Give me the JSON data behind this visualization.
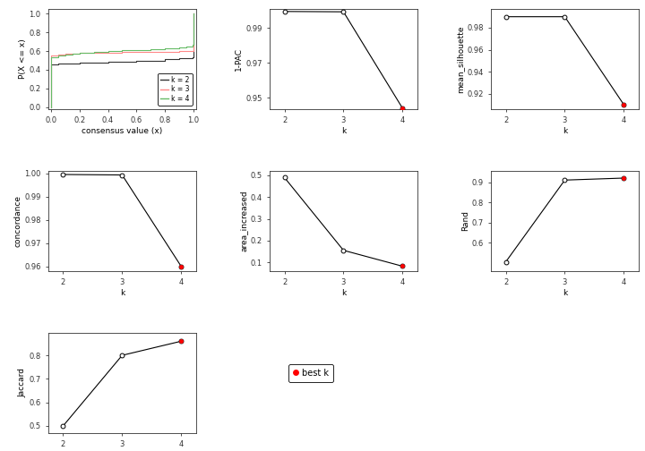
{
  "ecdf": {
    "k2": {
      "x": [
        0.0,
        0.001,
        0.05,
        0.1,
        0.15,
        0.2,
        0.3,
        0.4,
        0.5,
        0.6,
        0.7,
        0.8,
        0.9,
        0.95,
        0.999,
        1.0
      ],
      "y": [
        0.0,
        0.46,
        0.47,
        0.47,
        0.47,
        0.48,
        0.48,
        0.49,
        0.49,
        0.5,
        0.5,
        0.51,
        0.52,
        0.52,
        0.53,
        1.0
      ],
      "color": "#333333"
    },
    "k3": {
      "x": [
        0.0,
        0.001,
        0.05,
        0.1,
        0.15,
        0.2,
        0.3,
        0.4,
        0.5,
        0.6,
        0.7,
        0.8,
        0.9,
        0.95,
        0.999,
        1.0
      ],
      "y": [
        0.0,
        0.55,
        0.56,
        0.57,
        0.57,
        0.58,
        0.58,
        0.58,
        0.59,
        0.59,
        0.59,
        0.59,
        0.6,
        0.6,
        0.6,
        1.0
      ],
      "color": "#FF8888"
    },
    "k4": {
      "x": [
        0.0,
        0.001,
        0.05,
        0.1,
        0.15,
        0.2,
        0.3,
        0.4,
        0.5,
        0.6,
        0.7,
        0.8,
        0.9,
        0.95,
        0.999,
        1.0
      ],
      "y": [
        0.0,
        0.53,
        0.55,
        0.56,
        0.57,
        0.58,
        0.59,
        0.6,
        0.61,
        0.61,
        0.62,
        0.63,
        0.64,
        0.65,
        0.67,
        1.0
      ],
      "color": "#66BB66"
    }
  },
  "k_values": [
    2,
    3,
    4
  ],
  "pac": {
    "values": [
      0.9996,
      0.9994,
      0.944
    ],
    "best_k": 4,
    "ylim": [
      0.9435,
      1.001
    ],
    "yticks": [
      0.95,
      0.97,
      0.99
    ],
    "ylabel": "1-PAC"
  },
  "silhouette": {
    "values": [
      0.99,
      0.99,
      0.91
    ],
    "best_k": 4,
    "ylim": [
      0.906,
      0.997
    ],
    "yticks": [
      0.92,
      0.94,
      0.96,
      0.98
    ],
    "ylabel": "mean_silhouette"
  },
  "concordance": {
    "values": [
      0.9995,
      0.9993,
      0.96
    ],
    "best_k": 4,
    "ylim": [
      0.958,
      1.001
    ],
    "yticks": [
      0.96,
      0.97,
      0.98,
      0.99,
      1.0
    ],
    "ylabel": "concordance"
  },
  "area_increased": {
    "values": [
      0.49,
      0.155,
      0.082
    ],
    "best_k": 4,
    "ylim": [
      0.06,
      0.52
    ],
    "yticks": [
      0.1,
      0.2,
      0.3,
      0.4,
      0.5
    ],
    "ylabel": "area_increased"
  },
  "rand": {
    "values": [
      0.505,
      0.91,
      0.92
    ],
    "best_k": 4,
    "ylim": [
      0.46,
      0.955
    ],
    "yticks": [
      0.6,
      0.7,
      0.8,
      0.9
    ],
    "ylabel": "Rand"
  },
  "jaccard": {
    "values": [
      0.5,
      0.8,
      0.86
    ],
    "best_k": 4,
    "ylim": [
      0.47,
      0.895
    ],
    "yticks": [
      0.5,
      0.6,
      0.7,
      0.8
    ],
    "ylabel": "Jaccard"
  },
  "best_marker_color": "#FF0000",
  "bg_color": "#FFFFFF",
  "line_color": "#000000"
}
